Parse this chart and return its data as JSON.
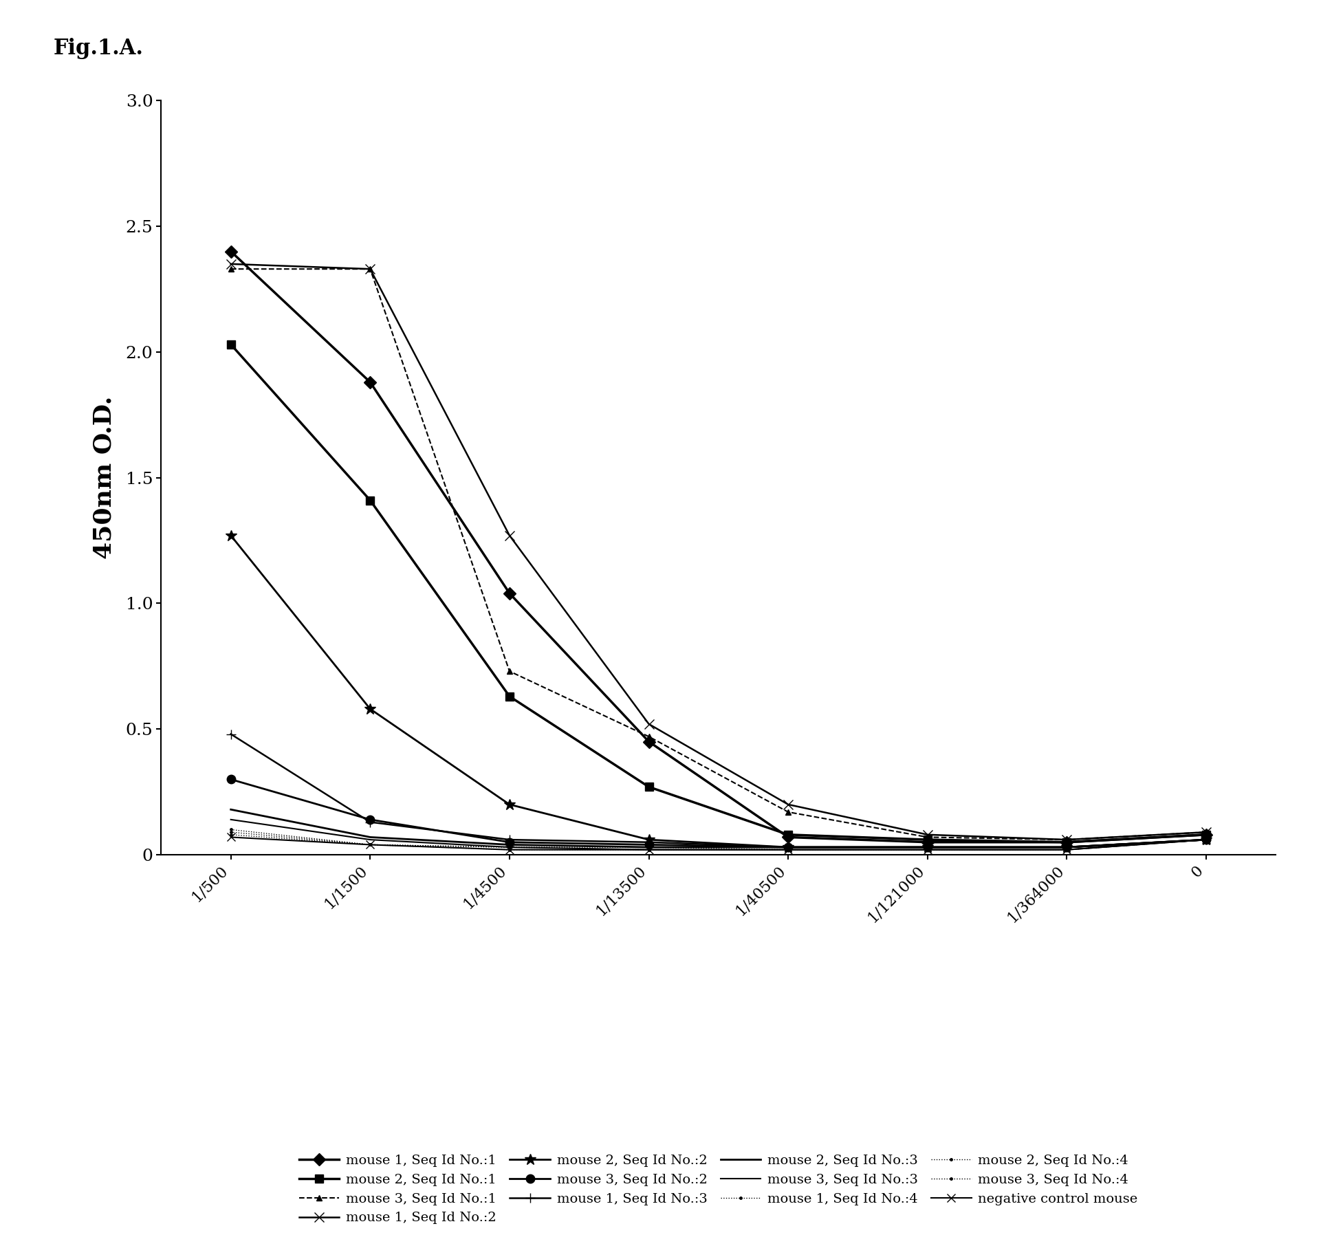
{
  "title": "Fig.1.A.",
  "ylabel": "450nm O.D.",
  "x_labels": [
    "1/500",
    "1/1500",
    "1/4500",
    "1/13500",
    "1/40500",
    "1/121000",
    "1/364000",
    "0"
  ],
  "x_positions": [
    0,
    1,
    2,
    3,
    4,
    5,
    6,
    7
  ],
  "ylim": [
    0,
    3.0
  ],
  "yticks": [
    0,
    0.5,
    1.0,
    1.5,
    2.0,
    2.5,
    3.0
  ],
  "series": [
    {
      "label": "mouse 1, Seq Id No.:1",
      "values": [
        2.4,
        1.88,
        1.04,
        0.45,
        0.07,
        0.05,
        0.05,
        0.08
      ],
      "color": "#000000",
      "linestyle": "-",
      "marker": "D",
      "markersize": 9,
      "linewidth": 2.5
    },
    {
      "label": "mouse 2, Seq Id No.:1",
      "values": [
        2.03,
        1.41,
        0.63,
        0.27,
        0.08,
        0.06,
        0.05,
        0.08
      ],
      "color": "#000000",
      "linestyle": "-",
      "marker": "s",
      "markersize": 9,
      "linewidth": 2.5
    },
    {
      "label": "mouse 3, Seq Id No.:1",
      "values": [
        2.33,
        2.33,
        0.73,
        0.47,
        0.17,
        0.07,
        0.06,
        0.09
      ],
      "color": "#000000",
      "linestyle": "--",
      "marker": "^",
      "markersize": 6,
      "linewidth": 1.5
    },
    {
      "label": "mouse 1, Seq Id No.:2",
      "values": [
        2.35,
        2.33,
        1.27,
        0.52,
        0.2,
        0.08,
        0.06,
        0.09
      ],
      "color": "#000000",
      "linestyle": "-",
      "marker": "x",
      "markersize": 10,
      "linewidth": 1.8
    },
    {
      "label": "mouse 2, Seq Id No.:2",
      "values": [
        1.27,
        0.58,
        0.2,
        0.06,
        0.03,
        0.03,
        0.03,
        0.06
      ],
      "color": "#000000",
      "linestyle": "-",
      "marker": "*",
      "markersize": 12,
      "linewidth": 2.0
    },
    {
      "label": "mouse 3, Seq Id No.:2",
      "values": [
        0.3,
        0.14,
        0.05,
        0.04,
        0.03,
        0.03,
        0.03,
        0.06
      ],
      "color": "#000000",
      "linestyle": "-",
      "marker": "o",
      "markersize": 9,
      "linewidth": 2.0
    },
    {
      "label": "mouse 1, Seq Id No.:3",
      "values": [
        0.48,
        0.13,
        0.06,
        0.05,
        0.03,
        0.03,
        0.03,
        0.06
      ],
      "color": "#000000",
      "linestyle": "-",
      "marker": "+",
      "markersize": 10,
      "linewidth": 1.8
    },
    {
      "label": "mouse 2, Seq Id No.:3",
      "values": [
        0.18,
        0.07,
        0.04,
        0.03,
        0.03,
        0.03,
        0.03,
        0.06
      ],
      "color": "#000000",
      "linestyle": "-",
      "marker": "None",
      "markersize": 8,
      "linewidth": 2.0
    },
    {
      "label": "mouse 3, Seq Id No.:3",
      "values": [
        0.14,
        0.06,
        0.03,
        0.02,
        0.02,
        0.02,
        0.02,
        0.06
      ],
      "color": "#000000",
      "linestyle": "-",
      "marker": "None",
      "markersize": 8,
      "linewidth": 1.5
    },
    {
      "label": "mouse 1, Seq Id No.:4",
      "values": [
        0.1,
        0.04,
        0.03,
        0.03,
        0.02,
        0.02,
        0.02,
        0.06
      ],
      "color": "#000000",
      "linestyle": ":",
      "marker": ".",
      "markersize": 5,
      "linewidth": 1.0
    },
    {
      "label": "mouse 2, Seq Id No.:4",
      "values": [
        0.09,
        0.04,
        0.03,
        0.02,
        0.02,
        0.02,
        0.02,
        0.06
      ],
      "color": "#000000",
      "linestyle": ":",
      "marker": ".",
      "markersize": 5,
      "linewidth": 1.0
    },
    {
      "label": "mouse 3, Seq Id No.:4",
      "values": [
        0.08,
        0.04,
        0.02,
        0.02,
        0.02,
        0.02,
        0.02,
        0.06
      ],
      "color": "#000000",
      "linestyle": ":",
      "marker": ".",
      "markersize": 5,
      "linewidth": 1.0
    },
    {
      "label": "negative control mouse",
      "values": [
        0.07,
        0.04,
        0.02,
        0.02,
        0.02,
        0.02,
        0.02,
        0.06
      ],
      "color": "#000000",
      "linestyle": "-",
      "marker": "x",
      "markersize": 8,
      "linewidth": 1.5
    }
  ]
}
